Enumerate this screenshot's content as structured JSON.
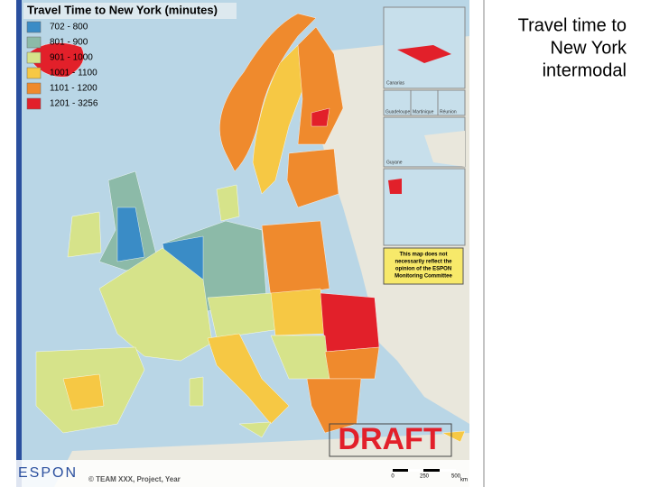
{
  "slide_title": [
    "Travel time to",
    "New York",
    "intermodal"
  ],
  "map": {
    "title": "Travel Time to New York (minutes)",
    "legend": [
      {
        "label": "702 - 800",
        "color": "#3a8cc6"
      },
      {
        "label": "801 - 900",
        "color": "#8cbaa8"
      },
      {
        "label": "901 - 1000",
        "color": "#d6e38a"
      },
      {
        "label": "1001 - 1100",
        "color": "#f6c844"
      },
      {
        "label": "1101 - 1200",
        "color": "#ef8a2d"
      },
      {
        "label": "1201 - 3256",
        "color": "#e2202a"
      }
    ],
    "insets": [
      "Canarias",
      "Guadeloupe",
      "Martinique",
      "Réunion",
      "Guyane"
    ],
    "disclaimer": [
      "This map does not",
      "necessarily reflect the",
      "opinion of the ESPON",
      "Monitoring Committee"
    ],
    "stamp": "DRAFT",
    "credit": "© TEAM XXX, Project, Year",
    "logo": "ESPON",
    "scale": [
      "0",
      "250",
      "500",
      "km"
    ]
  }
}
